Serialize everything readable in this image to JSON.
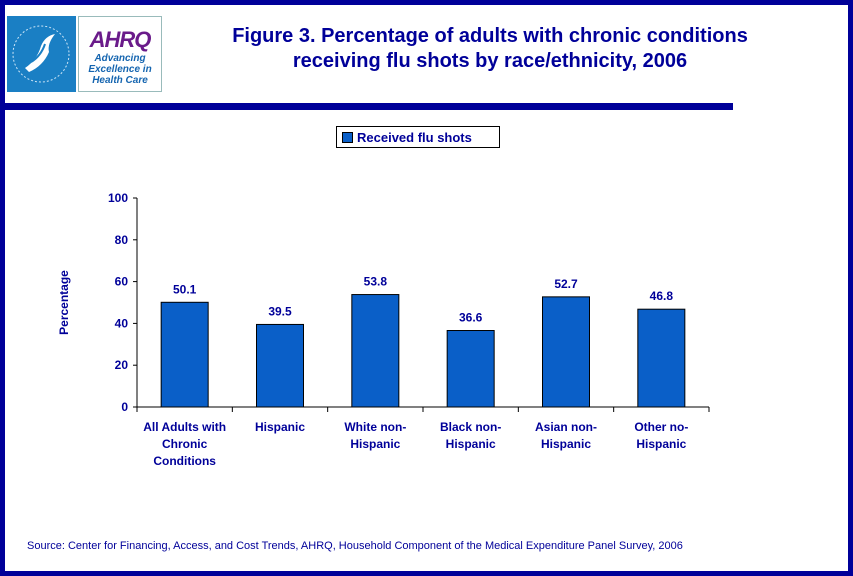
{
  "header": {
    "logo_hhs_label": "HHS",
    "logo_ahrq_word": "AHRQ",
    "logo_ahrq_tagline": [
      "Advancing",
      "Excellence in",
      "Health Care"
    ],
    "title_line1": "Figure 3. Percentage of adults with chronic conditions",
    "title_line2": "receiving flu shots by race/ethnicity, 2006"
  },
  "colors": {
    "frame": "#000099",
    "bar": "#0a5fc8",
    "text": "#000099"
  },
  "footer": {
    "source": "Source: Center for Financing, Access, and Cost Trends, AHRQ, Household Component of the Medical Expenditure Panel Survey, 2006"
  },
  "chart_data": {
    "type": "bar",
    "title": "Figure 3. Percentage of adults with chronic conditions receiving flu shots by race/ethnicity, 2006",
    "xlabel": "",
    "ylabel": "Percentage",
    "ylim": [
      0,
      100
    ],
    "yticks": [
      0,
      20,
      40,
      60,
      80,
      100
    ],
    "grid": false,
    "legend_position": "top-center",
    "categories": [
      [
        "All Adults with",
        "Chronic",
        "Conditions"
      ],
      [
        "Hispanic"
      ],
      [
        "White non-",
        "Hispanic"
      ],
      [
        "Black non-",
        "Hispanic"
      ],
      [
        "Asian non-",
        "Hispanic"
      ],
      [
        "Other no-",
        "Hispanic"
      ]
    ],
    "series": [
      {
        "name": "Received flu shots",
        "values": [
          50.1,
          39.5,
          53.8,
          36.6,
          52.7,
          46.8
        ],
        "labels": [
          "50.1",
          "39.5",
          "53.8",
          "36.6",
          "52.7",
          "46.8"
        ]
      }
    ]
  }
}
